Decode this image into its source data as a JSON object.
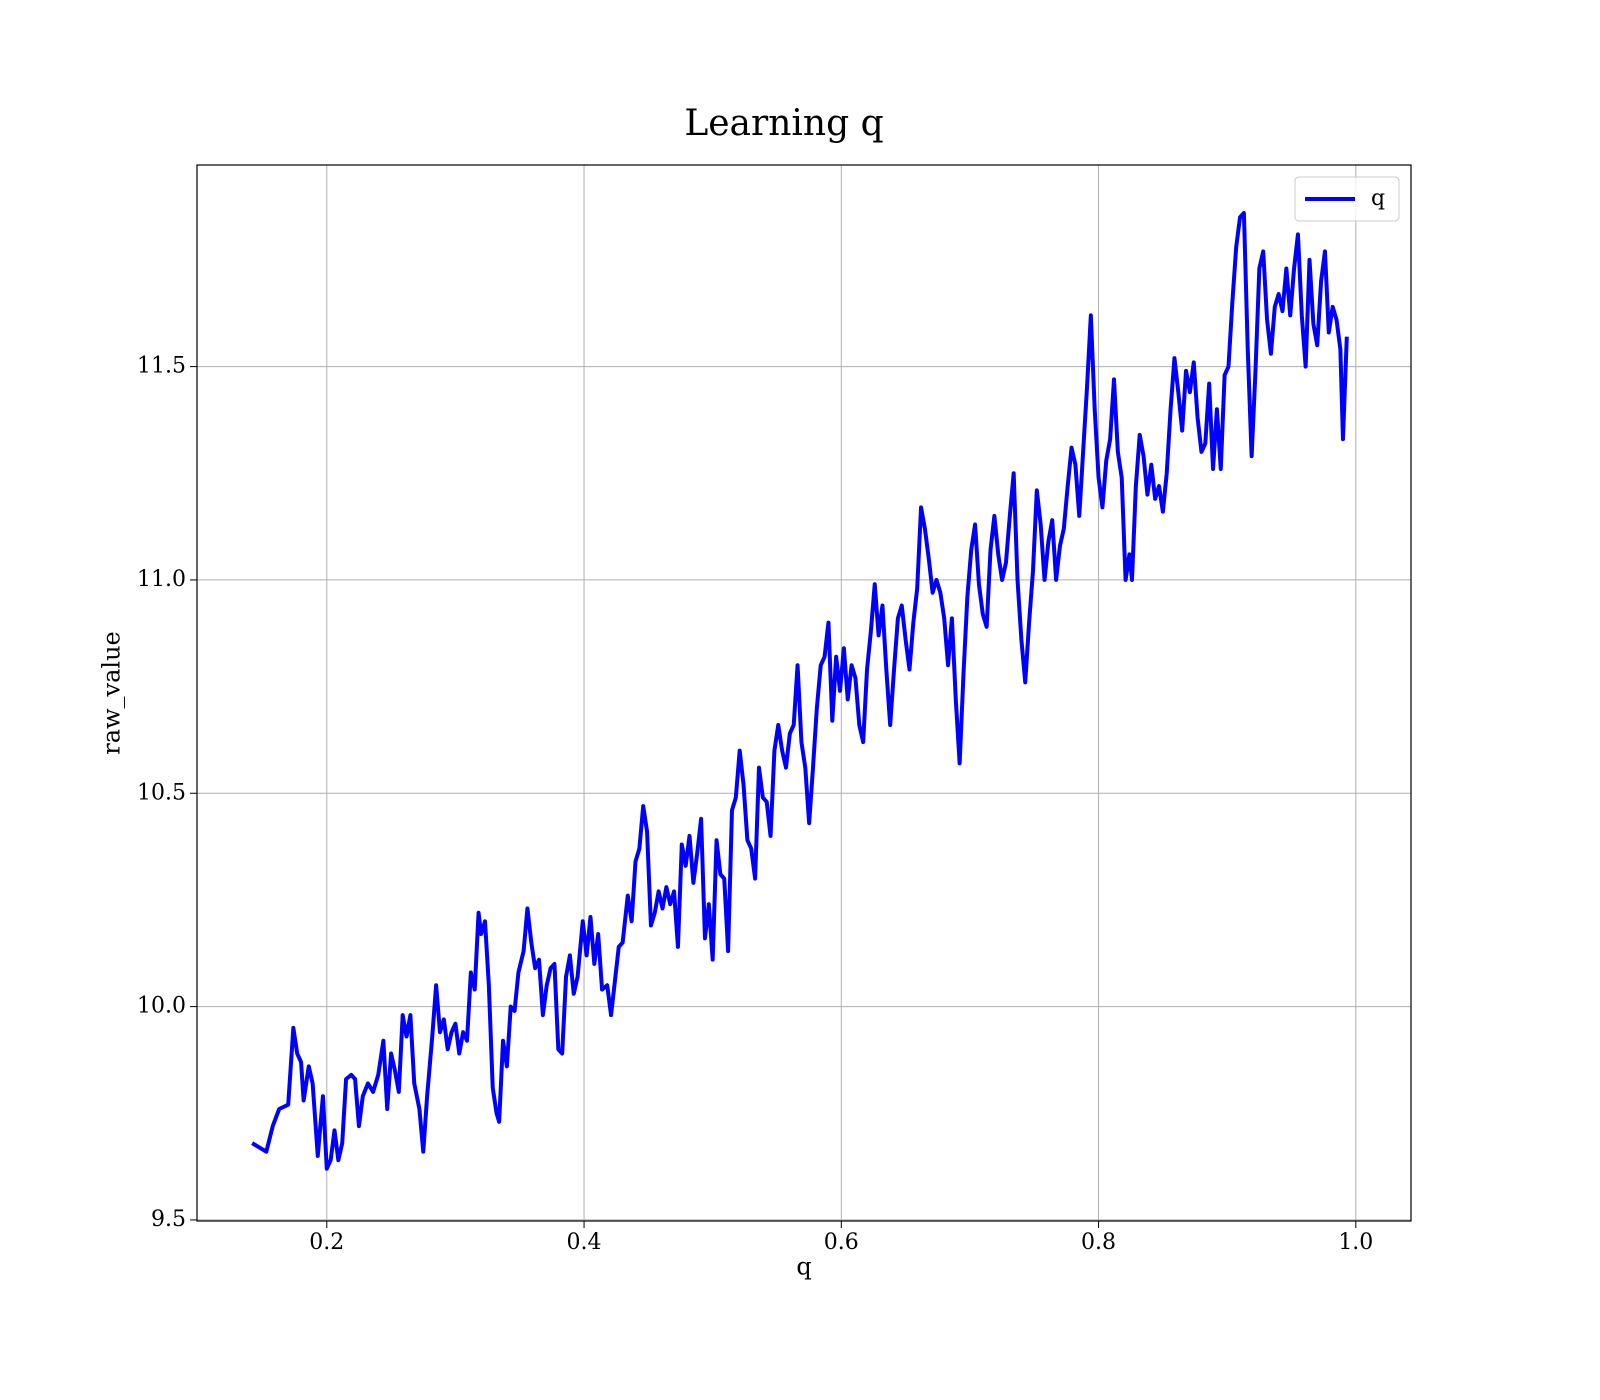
{
  "chart_data": {
    "type": "line",
    "title": "Learning q",
    "xlabel": "q",
    "ylabel": "raw_value",
    "x": [
      0.142,
      0.153,
      0.158,
      0.163,
      0.17,
      0.174,
      0.177,
      0.18,
      0.182,
      0.186,
      0.189,
      0.193,
      0.197,
      0.2,
      0.203,
      0.206,
      0.209,
      0.212,
      0.215,
      0.219,
      0.222,
      0.225,
      0.228,
      0.232,
      0.236,
      0.24,
      0.244,
      0.247,
      0.25,
      0.253,
      0.256,
      0.259,
      0.262,
      0.265,
      0.268,
      0.272,
      0.275,
      0.278,
      0.282,
      0.285,
      0.288,
      0.291,
      0.294,
      0.297,
      0.3,
      0.303,
      0.306,
      0.309,
      0.312,
      0.315,
      0.318,
      0.32,
      0.323,
      0.326,
      0.329,
      0.332,
      0.334,
      0.337,
      0.34,
      0.343,
      0.346,
      0.349,
      0.353,
      0.356,
      0.359,
      0.362,
      0.365,
      0.368,
      0.371,
      0.374,
      0.377,
      0.38,
      0.383,
      0.386,
      0.389,
      0.392,
      0.395,
      0.399,
      0.402,
      0.405,
      0.408,
      0.411,
      0.414,
      0.418,
      0.421,
      0.424,
      0.427,
      0.43,
      0.434,
      0.437,
      0.44,
      0.443,
      0.446,
      0.449,
      0.452,
      0.455,
      0.458,
      0.461,
      0.464,
      0.467,
      0.47,
      0.473,
      0.476,
      0.479,
      0.482,
      0.485,
      0.488,
      0.491,
      0.494,
      0.497,
      0.5,
      0.503,
      0.506,
      0.509,
      0.512,
      0.515,
      0.518,
      0.521,
      0.524,
      0.527,
      0.53,
      0.533,
      0.536,
      0.539,
      0.542,
      0.545,
      0.548,
      0.551,
      0.554,
      0.557,
      0.56,
      0.563,
      0.566,
      0.569,
      0.572,
      0.575,
      0.578,
      0.581,
      0.584,
      0.587,
      0.59,
      0.593,
      0.596,
      0.599,
      0.602,
      0.605,
      0.608,
      0.611,
      0.614,
      0.617,
      0.62,
      0.623,
      0.626,
      0.629,
      0.632,
      0.635,
      0.638,
      0.641,
      0.644,
      0.647,
      0.65,
      0.653,
      0.656,
      0.659,
      0.662,
      0.665,
      0.668,
      0.671,
      0.674,
      0.677,
      0.68,
      0.683,
      0.686,
      0.689,
      0.692,
      0.695,
      0.698,
      0.701,
      0.704,
      0.707,
      0.71,
      0.713,
      0.716,
      0.719,
      0.722,
      0.725,
      0.728,
      0.731,
      0.734,
      0.737,
      0.74,
      0.743,
      0.746,
      0.749,
      0.752,
      0.755,
      0.758,
      0.761,
      0.764,
      0.767,
      0.77,
      0.773,
      0.776,
      0.779,
      0.782,
      0.785,
      0.788,
      0.791,
      0.794,
      0.797,
      0.8,
      0.803,
      0.806,
      0.809,
      0.812,
      0.815,
      0.818,
      0.821,
      0.824,
      0.826,
      0.829,
      0.832,
      0.835,
      0.838,
      0.841,
      0.844,
      0.847,
      0.85,
      0.853,
      0.856,
      0.859,
      0.862,
      0.865,
      0.868,
      0.871,
      0.874,
      0.877,
      0.88,
      0.883,
      0.886,
      0.889,
      0.892,
      0.895,
      0.898,
      0.901,
      0.904,
      0.907,
      0.91,
      0.913,
      0.916,
      0.919,
      0.922,
      0.925,
      0.928,
      0.931,
      0.934,
      0.937,
      0.94,
      0.943,
      0.946,
      0.949,
      0.952,
      0.955,
      0.958,
      0.961,
      0.964,
      0.967,
      0.97,
      0.973,
      0.976,
      0.979,
      0.982,
      0.985,
      0.988,
      0.99,
      0.993
    ],
    "series": [
      {
        "name": "q",
        "color": "#0000ff",
        "values": [
          9.68,
          9.66,
          9.72,
          9.76,
          9.77,
          9.95,
          9.89,
          9.87,
          9.78,
          9.86,
          9.82,
          9.65,
          9.79,
          9.62,
          9.64,
          9.71,
          9.64,
          9.68,
          9.83,
          9.84,
          9.83,
          9.72,
          9.79,
          9.82,
          9.8,
          9.84,
          9.92,
          9.76,
          9.89,
          9.85,
          9.8,
          9.98,
          9.93,
          9.98,
          9.82,
          9.76,
          9.66,
          9.79,
          9.93,
          10.05,
          9.94,
          9.97,
          9.9,
          9.94,
          9.96,
          9.89,
          9.94,
          9.92,
          10.08,
          10.04,
          10.22,
          10.17,
          10.2,
          10.05,
          9.81,
          9.75,
          9.73,
          9.92,
          9.86,
          10.0,
          9.99,
          10.08,
          10.13,
          10.23,
          10.15,
          10.09,
          10.11,
          9.98,
          10.05,
          10.09,
          10.1,
          9.9,
          9.89,
          10.07,
          10.12,
          10.03,
          10.07,
          10.2,
          10.12,
          10.21,
          10.1,
          10.17,
          10.04,
          10.05,
          9.98,
          10.06,
          10.14,
          10.15,
          10.26,
          10.2,
          10.34,
          10.37,
          10.47,
          10.41,
          10.19,
          10.22,
          10.27,
          10.23,
          10.28,
          10.24,
          10.27,
          10.14,
          10.38,
          10.33,
          10.4,
          10.29,
          10.36,
          10.44,
          10.16,
          10.24,
          10.11,
          10.39,
          10.31,
          10.3,
          10.13,
          10.46,
          10.49,
          10.6,
          10.52,
          10.39,
          10.37,
          10.3,
          10.56,
          10.49,
          10.48,
          10.4,
          10.6,
          10.66,
          10.6,
          10.56,
          10.64,
          10.66,
          10.8,
          10.62,
          10.56,
          10.43,
          10.56,
          10.7,
          10.8,
          10.82,
          10.9,
          10.67,
          10.82,
          10.74,
          10.84,
          10.72,
          10.8,
          10.77,
          10.66,
          10.62,
          10.79,
          10.88,
          10.99,
          10.87,
          10.94,
          10.79,
          10.66,
          10.79,
          10.91,
          10.94,
          10.86,
          10.79,
          10.9,
          10.98,
          11.17,
          11.12,
          11.05,
          10.97,
          11.0,
          10.97,
          10.91,
          10.8,
          10.91,
          10.72,
          10.57,
          10.78,
          10.96,
          11.07,
          11.13,
          10.99,
          10.92,
          10.89,
          11.07,
          11.15,
          11.06,
          11.0,
          11.04,
          11.15,
          11.25,
          11.0,
          10.86,
          10.76,
          10.9,
          11.02,
          11.21,
          11.13,
          11.0,
          11.09,
          11.14,
          11.0,
          11.08,
          11.12,
          11.22,
          11.31,
          11.27,
          11.15,
          11.3,
          11.45,
          11.62,
          11.4,
          11.24,
          11.17,
          11.28,
          11.33,
          11.47,
          11.3,
          11.24,
          11.0,
          11.06,
          11.0,
          11.22,
          11.34,
          11.29,
          11.2,
          11.27,
          11.19,
          11.22,
          11.16,
          11.25,
          11.4,
          11.52,
          11.44,
          11.35,
          11.49,
          11.44,
          11.51,
          11.38,
          11.3,
          11.32,
          11.46,
          11.26,
          11.4,
          11.26,
          11.48,
          11.5,
          11.65,
          11.78,
          11.85,
          11.86,
          11.54,
          11.29,
          11.49,
          11.73,
          11.77,
          11.61,
          11.53,
          11.64,
          11.67,
          11.63,
          11.73,
          11.62,
          11.73,
          11.81,
          11.62,
          11.5,
          11.75,
          11.6,
          11.55,
          11.7,
          11.77,
          11.58,
          11.64,
          11.61,
          11.54,
          11.33,
          11.57
        ]
      }
    ],
    "xlim": [
      0.0991,
      1.0429
    ],
    "ylim": [
      9.4975,
      11.9725
    ],
    "xticks": [
      0.2,
      0.4,
      0.6,
      0.8,
      {
        "value": 1,
        "label": "1.0"
      }
    ],
    "yticks": [
      9.5,
      {
        "value": 10,
        "label": "10.0"
      },
      10.5,
      {
        "value": 11,
        "label": "11.0"
      },
      11.5
    ],
    "grid": true,
    "legend": "upper right"
  }
}
